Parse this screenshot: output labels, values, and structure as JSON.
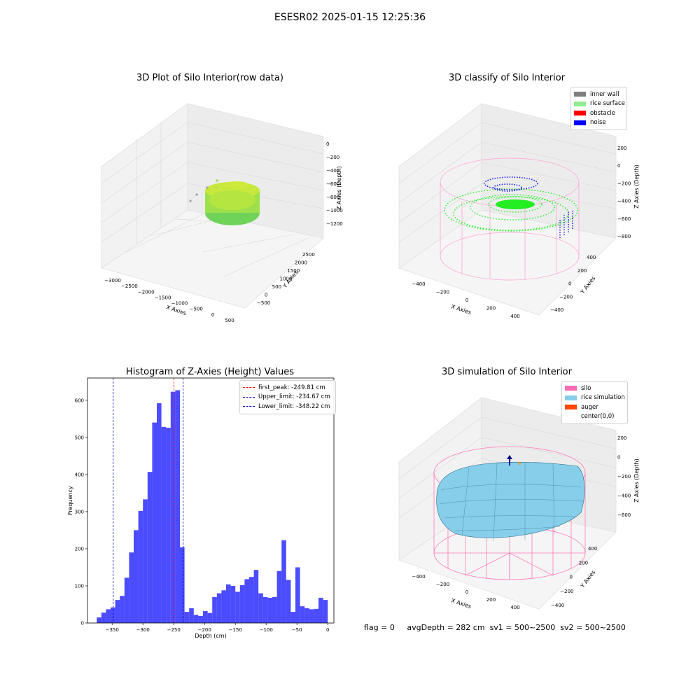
{
  "suptitle": "ESESR02 2025-01-15 12:25:36",
  "panels": {
    "raw": {
      "title": "3D Plot of Silo Interior(row data)",
      "xlabel": "X Axies",
      "ylabel": "Y Axies",
      "zlabel": "Z Axies (Depth)",
      "xticks": [
        "−3000",
        "−2500",
        "−2000",
        "−1500",
        "−1000",
        "−500",
        "0",
        "500"
      ],
      "yticks": [
        "−500",
        "0",
        "500",
        "1000",
        "1500",
        "2000",
        "2500"
      ],
      "zticks": [
        "0",
        "−200",
        "−400",
        "−600",
        "−800",
        "−1000",
        "−1200"
      ]
    },
    "classify": {
      "title": "3D classify of Silo Interior",
      "xlabel": "X Axies",
      "ylabel": "Y Axies",
      "zlabel": "Z Axies (Depth)",
      "xticks": [
        "−400",
        "−200",
        "0",
        "200",
        "400"
      ],
      "yticks": [
        "−400",
        "−200",
        "0",
        "200",
        "400"
      ],
      "zticks": [
        "200",
        "0",
        "−200",
        "−400",
        "−600",
        "−800"
      ],
      "legend": [
        {
          "label": "inner wall",
          "color": "#808080"
        },
        {
          "label": "rice surface",
          "color": "#90ee90"
        },
        {
          "label": "obstacle",
          "color": "#ff0000"
        },
        {
          "label": "noise",
          "color": "#0000ff"
        }
      ]
    },
    "simulation": {
      "title": "3D simulation of Silo Interior",
      "xlabel": "X Axies",
      "ylabel": "Y Axies",
      "zlabel": "Z Axies (Depth)",
      "xticks": [
        "−400",
        "−200",
        "0",
        "200",
        "400"
      ],
      "yticks": [
        "−400",
        "−200",
        "0",
        "200",
        "400"
      ],
      "zticks": [
        "200",
        "0",
        "−200",
        "−400",
        "−600"
      ],
      "legend": [
        {
          "label": "silo",
          "color": "#ff69b4"
        },
        {
          "label": "rice simulation",
          "color": "#87ceeb"
        },
        {
          "label": "auger",
          "color": "#ff4500"
        },
        {
          "label": "center(0,0)",
          "color": ""
        }
      ]
    }
  },
  "status_line": {
    "flag": "flag = 0",
    "avg_depth": "avgDepth = 282 cm",
    "sv1": "sv1 = 500~2500",
    "sv2": "sv2 = 500~2500"
  },
  "chart_data": [
    {
      "type": "histogram",
      "title": "Histogram of Z-Axies (Height) Values",
      "xlabel": "Depth (cm)",
      "ylabel": "Frequency",
      "xlim": [
        -390,
        10
      ],
      "ylim": [
        0,
        660
      ],
      "xticks": [
        -350,
        -300,
        -250,
        -200,
        -150,
        -100,
        -50,
        0
      ],
      "yticks": [
        0,
        100,
        200,
        300,
        400,
        500,
        600
      ],
      "bar_color": "#0000ff",
      "bins": {
        "start": -375,
        "width": 7.5,
        "counts": [
          15,
          28,
          37,
          42,
          62,
          73,
          122,
          190,
          250,
          302,
          333,
          407,
          540,
          592,
          528,
          526,
          623,
          627,
          204,
          30,
          40,
          22,
          19,
          32,
          27,
          70,
          80,
          88,
          104,
          100,
          84,
          102,
          118,
          124,
          143,
          80,
          70,
          68,
          70,
          140,
          223,
          116,
          30,
          150,
          45,
          40,
          37,
          38,
          68,
          62
        ]
      },
      "lines": [
        {
          "label": "first_peak: -249.81 cm",
          "value": -249.81,
          "color": "#ff0000"
        },
        {
          "label": "Upper_limit: -234.67 cm",
          "value": -234.67,
          "color": "#0000bb"
        },
        {
          "label": "Lower_limit: -348.22 cm",
          "value": -348.22,
          "color": "#0000bb"
        }
      ]
    }
  ]
}
